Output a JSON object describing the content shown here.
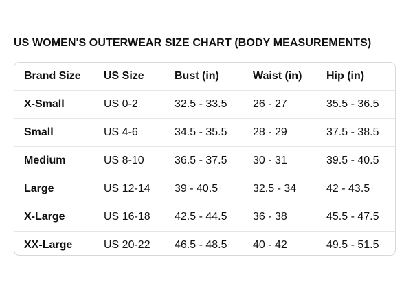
{
  "title": "US WOMEN'S OUTERWEAR SIZE CHART (BODY MEASUREMENTS)",
  "table": {
    "headers": [
      "Brand Size",
      "US Size",
      "Bust (in)",
      "Waist (in)",
      "Hip (in)"
    ],
    "rows": [
      [
        "X-Small",
        "US 0-2",
        "32.5 - 33.5",
        "26 - 27",
        "35.5 - 36.5"
      ],
      [
        "Small",
        "US 4-6",
        "34.5 - 35.5",
        "28 - 29",
        "37.5 - 38.5"
      ],
      [
        "Medium",
        "US 8-10",
        "36.5 - 37.5",
        "30 - 31",
        "39.5 - 40.5"
      ],
      [
        "Large",
        "US 12-14",
        "39 - 40.5",
        "32.5 - 34",
        "42 - 43.5"
      ],
      [
        "X-Large",
        "US 16-18",
        "42.5 - 44.5",
        "36 - 38",
        "45.5 - 47.5"
      ],
      [
        "XX-Large",
        "US 20-22",
        "46.5 - 48.5",
        "40 - 42",
        "49.5 - 51.5"
      ]
    ]
  }
}
